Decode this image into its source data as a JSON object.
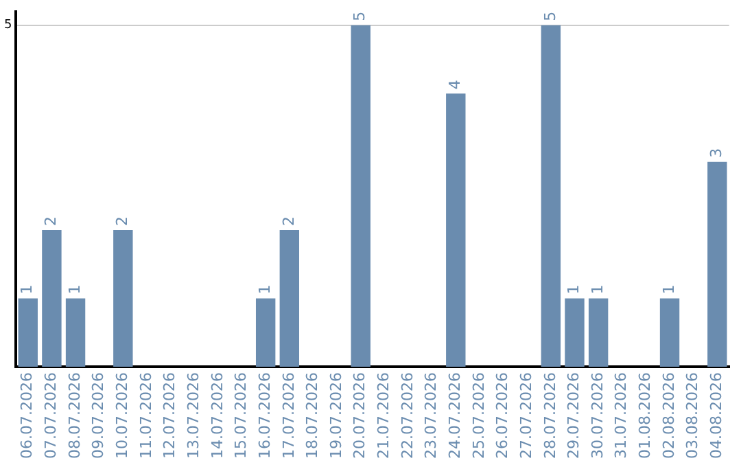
{
  "chart_data": {
    "type": "bar",
    "categories": [
      "06.07.2026",
      "07.07.2026",
      "08.07.2026",
      "09.07.2026",
      "10.07.2026",
      "11.07.2026",
      "12.07.2026",
      "13.07.2026",
      "14.07.2026",
      "15.07.2026",
      "16.07.2026",
      "17.07.2026",
      "18.07.2026",
      "19.07.2026",
      "20.07.2026",
      "21.07.2026",
      "22.07.2026",
      "23.07.2026",
      "24.07.2026",
      "25.07.2026",
      "26.07.2026",
      "27.07.2026",
      "28.07.2026",
      "29.07.2026",
      "30.07.2026",
      "31.07.2026",
      "01.08.2026",
      "02.08.2026",
      "03.08.2026",
      "04.08.2026"
    ],
    "values": [
      1,
      2,
      1,
      null,
      2,
      null,
      null,
      null,
      null,
      null,
      1,
      2,
      null,
      null,
      5,
      null,
      null,
      null,
      4,
      null,
      null,
      null,
      5,
      1,
      1,
      null,
      null,
      1,
      null,
      3
    ],
    "color": "#6a8caf",
    "ylim": [
      0,
      5.2
    ],
    "yticks": [
      5
    ],
    "grid": "y",
    "legend": false,
    "data_labels": true
  }
}
